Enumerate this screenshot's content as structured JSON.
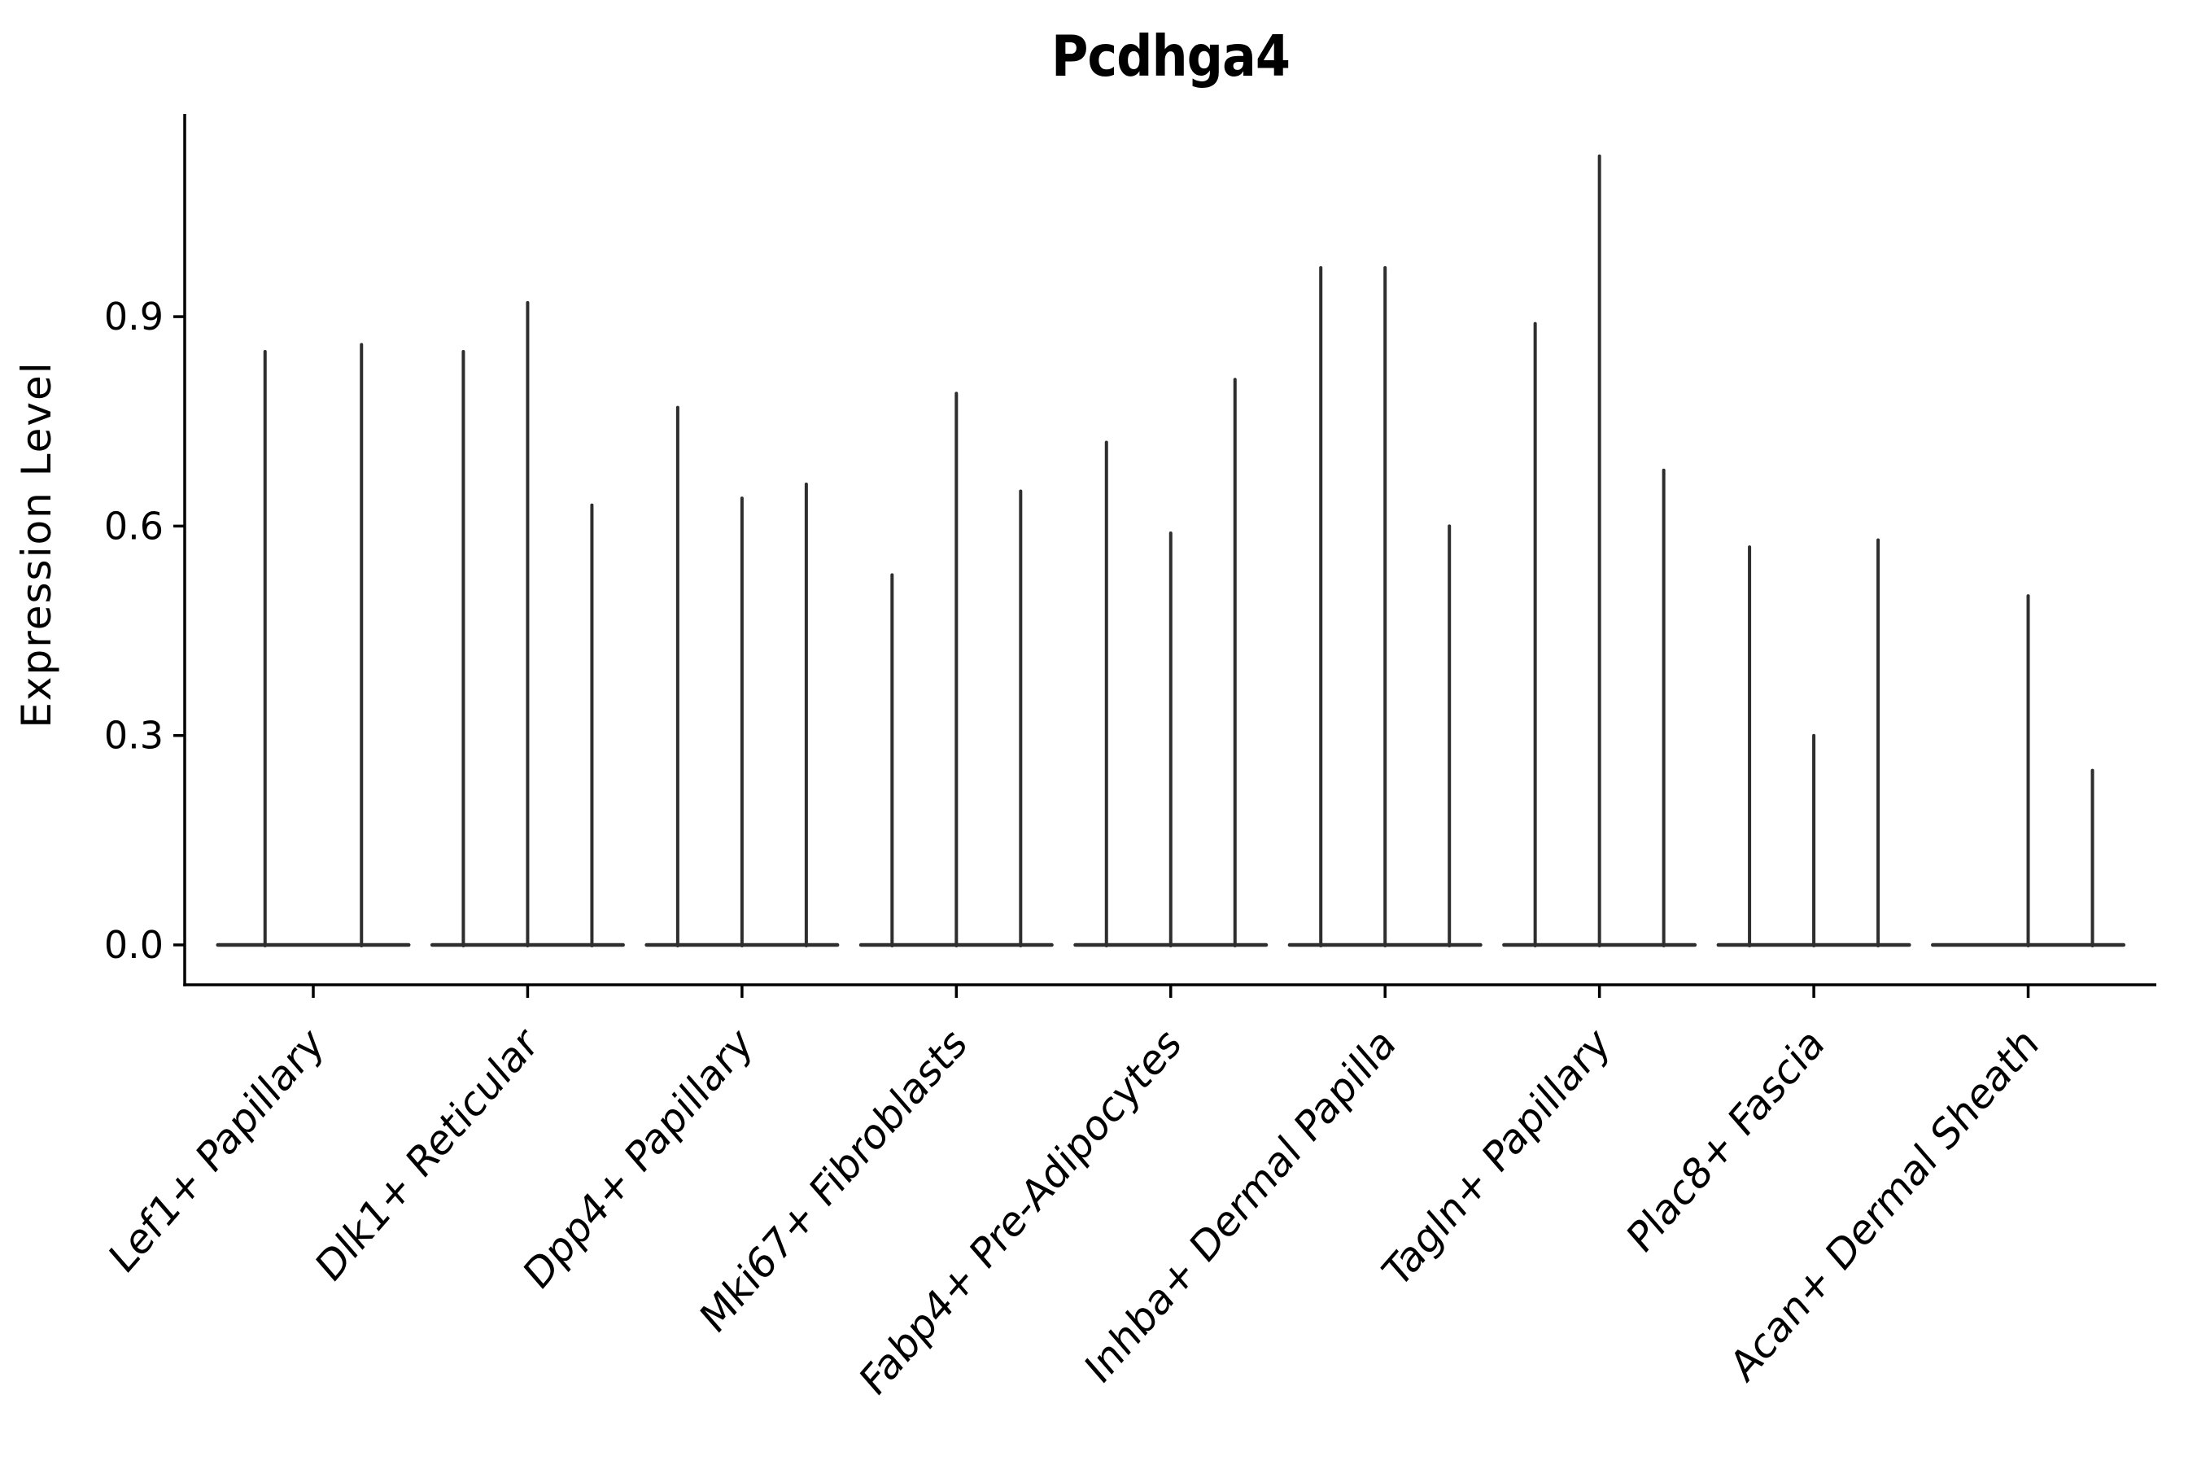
{
  "chart_data": {
    "type": "violin",
    "title": "Pcdhga4",
    "ylabel": "Expression Level",
    "xlabel": "",
    "ytick_labels": [
      "0.0",
      "0.3",
      "0.6",
      "0.9"
    ],
    "ytick_values": [
      0.0,
      0.3,
      0.6,
      0.9
    ],
    "ylim": [
      0.0,
      1.19
    ],
    "legend": "none",
    "grid": false,
    "style_note": "thin black violins on flat zero-baselines, 2-3 violins per category",
    "groups": [
      {
        "label": "Lef1+ Papillary",
        "violin_maxima": [
          0.85,
          0.86
        ]
      },
      {
        "label": "Dlk1+ Reticular",
        "violin_maxima": [
          0.85,
          0.92,
          0.63
        ]
      },
      {
        "label": "Dpp4+ Papillary",
        "violin_maxima": [
          0.77,
          0.64,
          0.66
        ]
      },
      {
        "label": "Mki67+ Fibroblasts",
        "violin_maxima": [
          0.53,
          0.79,
          0.65
        ]
      },
      {
        "label": "Fabp4+ Pre-Adipocytes",
        "violin_maxima": [
          0.72,
          0.59,
          0.81
        ]
      },
      {
        "label": "Inhba+ Dermal Papilla",
        "violin_maxima": [
          0.97,
          0.97,
          0.6
        ]
      },
      {
        "label": "Tagln+ Papillary",
        "violin_maxima": [
          0.89,
          1.13,
          0.68
        ]
      },
      {
        "label": "Plac8+ Fascia",
        "violin_maxima": [
          0.57,
          0.3,
          0.58
        ]
      },
      {
        "label": "Acan+ Dermal Sheath",
        "violin_maxima": [
          0.0,
          0.5,
          0.25
        ]
      }
    ],
    "colors": {
      "violin": "#2e2e2e",
      "axis": "#000000",
      "background": "#ffffff",
      "text": "#000000"
    }
  }
}
